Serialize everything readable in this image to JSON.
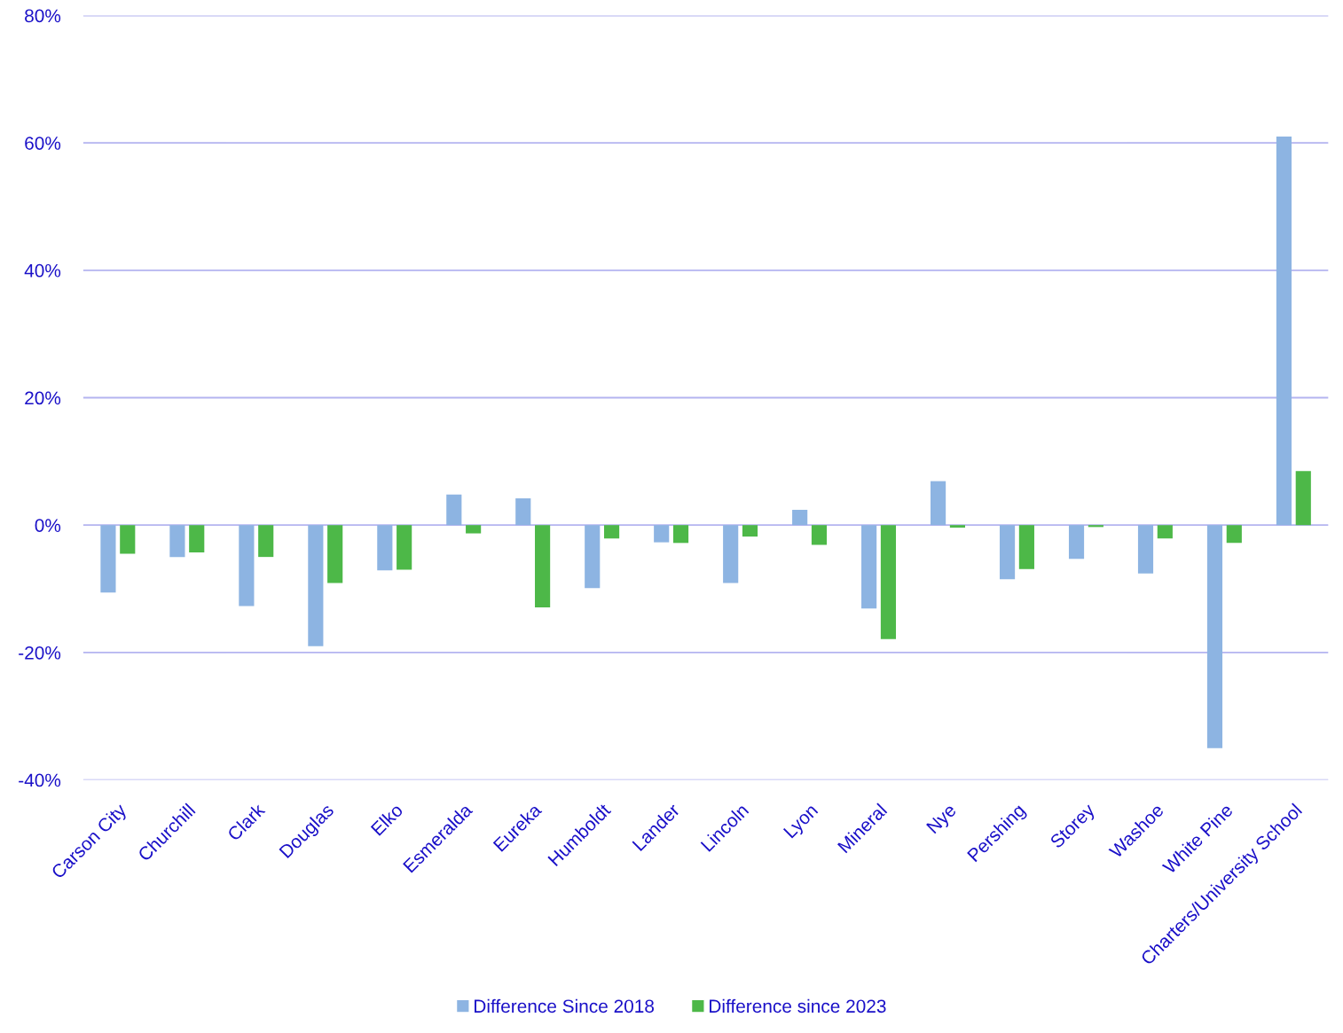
{
  "chart_data": {
    "type": "bar",
    "categories": [
      "Carson City",
      "Churchill",
      "Clark",
      "Douglas",
      "Elko",
      "Esmeralda",
      "Eureka",
      "Humboldt",
      "Lander",
      "Lincoln",
      "Lyon",
      "Mineral",
      "Nye",
      "Pershing",
      "Storey",
      "Washoe",
      "White Pine",
      "Charters/University School"
    ],
    "series": [
      {
        "name": "Difference Since 2018",
        "color": "#8db4e2",
        "values": [
          -10.6,
          -5.0,
          -12.7,
          -19.0,
          -7.1,
          4.8,
          4.2,
          -9.9,
          -2.7,
          -9.1,
          2.4,
          -13.1,
          6.9,
          -8.5,
          -5.3,
          -7.6,
          -35.0,
          61.0
        ]
      },
      {
        "name": "Difference since 2023",
        "color": "#4db848",
        "values": [
          -4.5,
          -4.3,
          -5.0,
          -9.1,
          -7.0,
          -1.3,
          -12.9,
          -2.1,
          -2.8,
          -1.8,
          -3.1,
          -17.9,
          -0.4,
          -6.9,
          -0.3,
          -2.1,
          -2.8,
          8.5
        ]
      }
    ],
    "ylim": [
      -40,
      80
    ],
    "yticks": [
      {
        "value": -40,
        "label": "-40%"
      },
      {
        "value": -20,
        "label": "-20%"
      },
      {
        "value": 0,
        "label": "0%"
      },
      {
        "value": 20,
        "label": "20%"
      },
      {
        "value": 40,
        "label": "40%"
      },
      {
        "value": 60,
        "label": "60%"
      },
      {
        "value": 80,
        "label": "80%"
      }
    ],
    "grid": "y",
    "legend": "bottom"
  }
}
